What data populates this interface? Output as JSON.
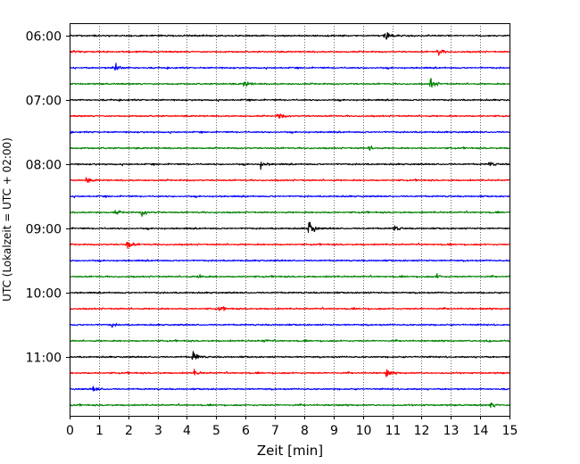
{
  "chart_data": {
    "type": "line",
    "title": "",
    "xlabel": "Zeit  [min]",
    "ylabel": "UTC (Lokalzeit = UTC + 02:00)",
    "xlim": [
      0,
      15
    ],
    "x_ticks": [
      0,
      1,
      2,
      3,
      4,
      5,
      6,
      7,
      8,
      9,
      10,
      11,
      12,
      13,
      14,
      15
    ],
    "y_tick_labels": [
      "06:00",
      "07:00",
      "08:00",
      "09:00",
      "10:00",
      "11:00"
    ],
    "grid": "vertical dotted lines at each minute",
    "trace_interval_minutes": 15,
    "color_cycle": [
      "#000000",
      "#ff0000",
      "#0000ff",
      "#008000"
    ],
    "traces": [
      {
        "start": "06:00",
        "events": [
          {
            "t": 10.75,
            "amp": 1.0
          }
        ]
      },
      {
        "start": "06:15",
        "events": [
          {
            "t": 12.55,
            "amp": 0.8
          },
          {
            "t": 0.1,
            "amp": 0.5
          }
        ]
      },
      {
        "start": "06:30",
        "events": [
          {
            "t": 1.5,
            "amp": 1.6
          }
        ]
      },
      {
        "start": "06:45",
        "events": [
          {
            "t": 12.3,
            "amp": 1.2
          },
          {
            "t": 5.95,
            "amp": 0.7
          }
        ]
      },
      {
        "start": "07:00",
        "events": []
      },
      {
        "start": "07:15",
        "events": [
          {
            "t": 7.1,
            "amp": 0.8
          }
        ]
      },
      {
        "start": "07:30",
        "events": []
      },
      {
        "start": "07:45",
        "events": [
          {
            "t": 10.2,
            "amp": 0.5
          }
        ]
      },
      {
        "start": "08:00",
        "events": [
          {
            "t": 6.5,
            "amp": 0.8
          },
          {
            "t": 14.3,
            "amp": 0.5
          }
        ]
      },
      {
        "start": "08:15",
        "events": [
          {
            "t": 0.55,
            "amp": 0.5
          }
        ]
      },
      {
        "start": "08:30",
        "events": []
      },
      {
        "start": "08:45",
        "events": [
          {
            "t": 2.45,
            "amp": 0.7
          },
          {
            "t": 1.55,
            "amp": 0.4
          }
        ]
      },
      {
        "start": "09:00",
        "events": [
          {
            "t": 8.15,
            "amp": 1.9
          },
          {
            "t": 11.05,
            "amp": 0.6
          }
        ]
      },
      {
        "start": "09:15",
        "events": [
          {
            "t": 1.95,
            "amp": 1.2
          }
        ]
      },
      {
        "start": "09:30",
        "events": []
      },
      {
        "start": "09:45",
        "events": [
          {
            "t": 12.5,
            "amp": 0.5
          },
          {
            "t": 4.4,
            "amp": 0.4
          }
        ]
      },
      {
        "start": "10:00",
        "events": []
      },
      {
        "start": "10:15",
        "events": [
          {
            "t": 5.1,
            "amp": 0.5
          }
        ]
      },
      {
        "start": "10:30",
        "events": [
          {
            "t": 1.4,
            "amp": 0.4
          }
        ]
      },
      {
        "start": "10:45",
        "events": [
          {
            "t": 14.15,
            "amp": 0.4
          },
          {
            "t": 6.6,
            "amp": 0.3
          }
        ]
      },
      {
        "start": "11:00",
        "events": [
          {
            "t": 4.2,
            "amp": 1.3
          }
        ]
      },
      {
        "start": "11:15",
        "events": [
          {
            "t": 10.8,
            "amp": 0.7
          },
          {
            "t": 4.25,
            "amp": 0.5
          }
        ]
      },
      {
        "start": "11:30",
        "events": [
          {
            "t": 0.8,
            "amp": 0.6
          }
        ]
      },
      {
        "start": "11:45",
        "events": [
          {
            "t": 14.35,
            "amp": 0.6
          }
        ]
      }
    ]
  }
}
